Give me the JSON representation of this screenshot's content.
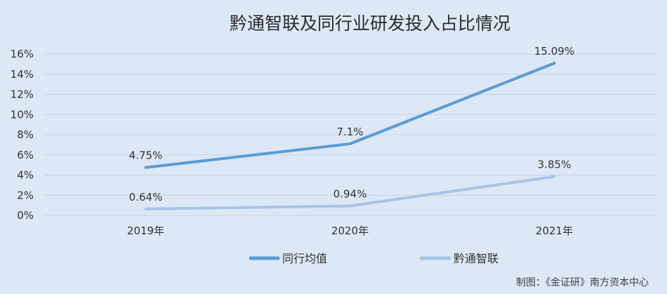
{
  "chart_data": {
    "type": "line",
    "title": "黔通智联及同行业研发投入占比情况",
    "categories": [
      "2019年",
      "2020年",
      "2021年"
    ],
    "y_ticks": [
      "0%",
      "2%",
      "4%",
      "6%",
      "8%",
      "10%",
      "12%",
      "14%",
      "16%"
    ],
    "ylim": [
      0,
      16
    ],
    "grid": "horizontal",
    "legend_position": "bottom",
    "series": [
      {
        "name": "同行均值",
        "values": [
          4.75,
          7.1,
          15.09
        ],
        "labels": [
          "4.75%",
          "7.1%",
          "15.09%"
        ],
        "color": "#5b9bd5"
      },
      {
        "name": "黔通智联",
        "values": [
          0.64,
          0.94,
          3.85
        ],
        "labels": [
          "0.64%",
          "0.94%",
          "3.85%"
        ],
        "color": "#a9c4e8"
      }
    ]
  },
  "credit": "制图：《金证研》南方资本中心",
  "background_color": "#dce8f5",
  "grid_color": "#c6d3e2"
}
